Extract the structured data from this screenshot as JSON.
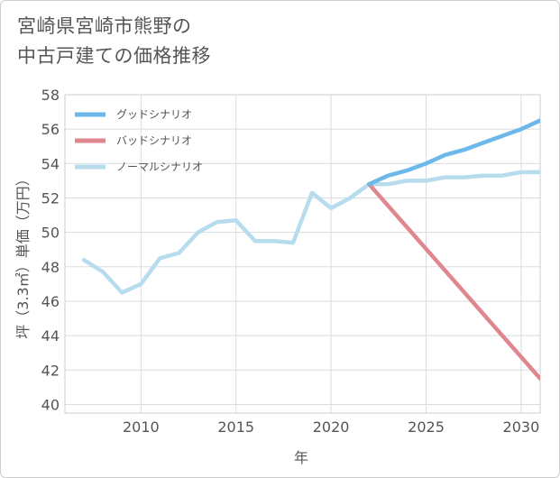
{
  "chart_data": {
    "type": "line",
    "title_lines": [
      "宮崎県宮崎市熊野の",
      "中古戸建ての価格推移"
    ],
    "xlabel": "年",
    "ylabel": "坪（3.3㎡）単価（万円）",
    "xlim": [
      2006,
      2031
    ],
    "ylim": [
      39.5,
      58
    ],
    "x_ticks": [
      2010,
      2015,
      2020,
      2025,
      2030
    ],
    "y_ticks": [
      40,
      42,
      44,
      46,
      48,
      50,
      52,
      54,
      56,
      58
    ],
    "grid": true,
    "legend_position": "top-left",
    "series": [
      {
        "name": "グッドシナリオ",
        "color": "#6cb8ea",
        "x": [
          2022,
          2023,
          2024,
          2025,
          2026,
          2027,
          2028,
          2029,
          2030,
          2031
        ],
        "values": [
          52.8,
          53.3,
          53.6,
          54.0,
          54.5,
          54.8,
          55.2,
          55.6,
          56.0,
          56.5
        ]
      },
      {
        "name": "バッドシナリオ",
        "color": "#e0868f",
        "x": [
          2022,
          2031
        ],
        "values": [
          52.8,
          41.5
        ]
      },
      {
        "name": "ノーマルシナリオ",
        "color": "#b7dcee",
        "x": [
          2007,
          2008,
          2009,
          2010,
          2011,
          2012,
          2013,
          2014,
          2015,
          2016,
          2017,
          2018,
          2019,
          2020,
          2021,
          2022,
          2023,
          2024,
          2025,
          2026,
          2027,
          2028,
          2029,
          2030,
          2031
        ],
        "values": [
          48.4,
          47.7,
          46.5,
          47.0,
          48.5,
          48.8,
          50.0,
          50.6,
          50.7,
          49.5,
          49.5,
          49.4,
          52.3,
          51.4,
          52.0,
          52.8,
          52.8,
          53.0,
          53.0,
          53.2,
          53.2,
          53.3,
          53.3,
          53.5,
          53.5
        ]
      }
    ]
  }
}
